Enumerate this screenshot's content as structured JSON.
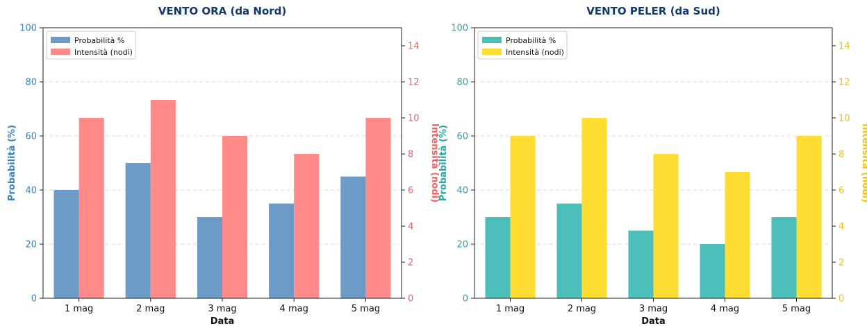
{
  "chart_data": [
    {
      "type": "bar",
      "title": "VENTO ORA (da Nord)",
      "xlabel": "Data",
      "ylabel": "Probabilità (%)",
      "y2label": "Intensità (nodi)",
      "categories": [
        "1 mag",
        "2 mag",
        "3 mag",
        "4 mag",
        "5 mag"
      ],
      "ylim": [
        0,
        100
      ],
      "y2lim": [
        0,
        15
      ],
      "yticks": [
        0,
        20,
        40,
        60,
        80,
        100
      ],
      "y2ticks": [
        0,
        2,
        4,
        6,
        8,
        10,
        12,
        14
      ],
      "grid": true,
      "legend_position": "top-left",
      "series": [
        {
          "name": "Probabilità %",
          "axis": "left",
          "color": "#6b9bc6",
          "values": [
            40,
            50,
            30,
            35,
            45
          ]
        },
        {
          "name": "Intensità (nodi)",
          "axis": "right",
          "color": "#ff8a8a",
          "values": [
            10,
            11,
            9,
            8,
            10
          ]
        }
      ],
      "left_axis_color": "#3a84c4",
      "right_axis_color": "#f06060",
      "title_color": "#123a6a"
    },
    {
      "type": "bar",
      "title": "VENTO PELER (da Sud)",
      "xlabel": "Data",
      "ylabel": "Probabilità (%)",
      "y2label": "Intensità (nodi)",
      "categories": [
        "1 mag",
        "2 mag",
        "3 mag",
        "4 mag",
        "5 mag"
      ],
      "ylim": [
        0,
        100
      ],
      "y2lim": [
        0,
        15
      ],
      "yticks": [
        0,
        20,
        40,
        60,
        80,
        100
      ],
      "y2ticks": [
        0,
        2,
        4,
        6,
        8,
        10,
        12,
        14
      ],
      "grid": true,
      "legend_position": "top-left",
      "series": [
        {
          "name": "Probabilità %",
          "axis": "left",
          "color": "#4dbfba",
          "values": [
            30,
            35,
            25,
            20,
            30
          ]
        },
        {
          "name": "Intensità (nodi)",
          "axis": "right",
          "color": "#ffdd33",
          "values": [
            9,
            10,
            8,
            7,
            9
          ]
        }
      ],
      "left_axis_color": "#22aaa6",
      "right_axis_color": "#f2c200",
      "title_color": "#123a6a"
    }
  ]
}
